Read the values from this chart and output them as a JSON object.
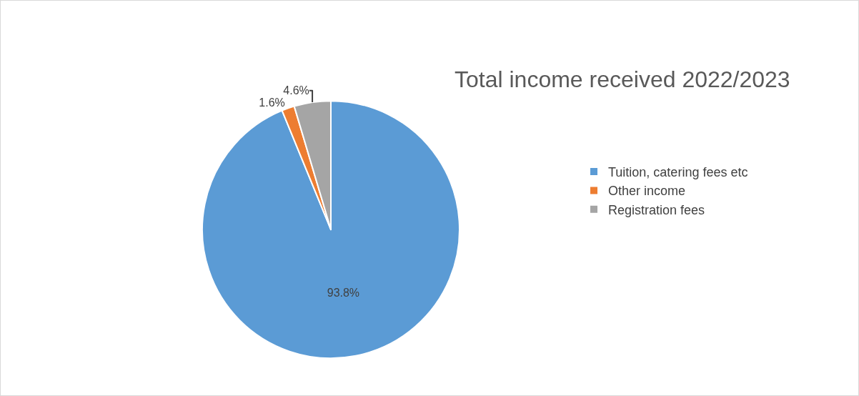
{
  "chart_data": {
    "type": "pie",
    "title": "Total income received 2022/2023",
    "categories": [
      "Tuition, catering fees etc",
      "Other income",
      "Registration fees"
    ],
    "values": [
      93.8,
      1.6,
      4.6
    ],
    "colors": [
      "#5b9bd5",
      "#ed7d31",
      "#a5a5a5"
    ],
    "value_labels": [
      "93.8%",
      "1.6%",
      "4.6%"
    ],
    "legend": "right"
  }
}
